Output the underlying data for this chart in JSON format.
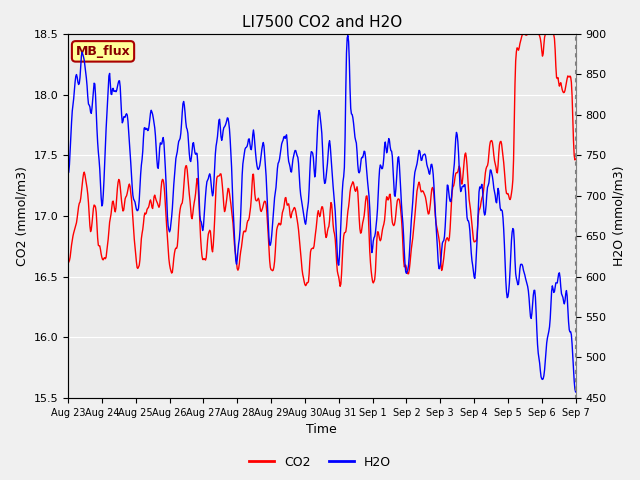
{
  "title": "LI7500 CO2 and H2O",
  "xlabel": "Time",
  "ylabel_left": "CO2 (mmol/m3)",
  "ylabel_right": "H2O (mmol/m3)",
  "ylim_left": [
    15.5,
    18.5
  ],
  "ylim_right": [
    450,
    900
  ],
  "yticks_left": [
    15.5,
    16.0,
    16.5,
    17.0,
    17.5,
    18.0,
    18.5
  ],
  "yticks_right": [
    450,
    500,
    550,
    600,
    650,
    700,
    750,
    800,
    850,
    900
  ],
  "co2_color": "#ff0000",
  "h2o_color": "#0000ff",
  "line_width": 1.0,
  "plot_bg_color": "#ebebeb",
  "fig_bg_color": "#f0f0f0",
  "label_box_text": "MB_flux",
  "label_box_facecolor": "#ffff99",
  "label_box_edgecolor": "#aa0000",
  "legend_co2": "CO2",
  "legend_h2o": "H2O",
  "xtick_labels": [
    "Aug 23",
    "Aug 24",
    "Aug 25",
    "Aug 26",
    "Aug 27",
    "Aug 28",
    "Aug 29",
    "Aug 30",
    "Aug 31",
    "Sep 1",
    "Sep 2",
    "Sep 3",
    "Sep 4",
    "Sep 5",
    "Sep 6",
    "Sep 7"
  ],
  "seed": 12345
}
